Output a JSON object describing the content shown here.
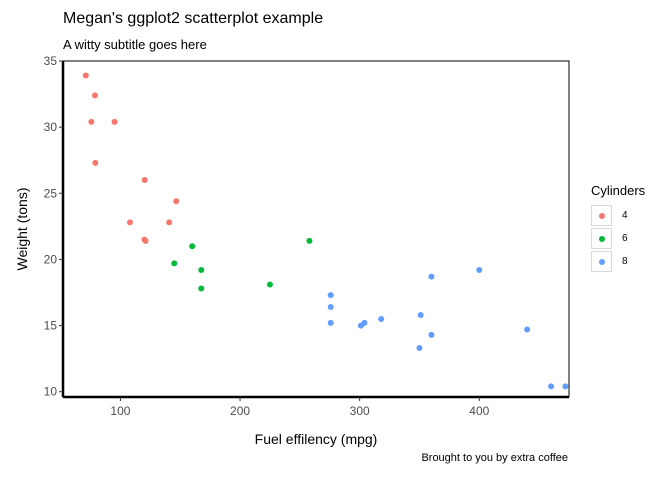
{
  "chart_data": {
    "type": "scatter",
    "title": "Megan's ggplot2 scatterplot example",
    "subtitle": "A witty subtitle goes here",
    "caption": "Brought to you by extra coffee",
    "xlabel": "Fuel effilency (mpg)",
    "ylabel": "Weight (tons)",
    "xlim": [
      52,
      475
    ],
    "ylim": [
      9.6,
      35
    ],
    "x_ticks": [
      100,
      200,
      300,
      400
    ],
    "y_ticks": [
      10,
      15,
      20,
      25,
      30,
      35
    ],
    "grid": false,
    "legend": {
      "title": "Cylinders",
      "position": "right"
    },
    "series": [
      {
        "name": "4",
        "color": "#F8766D",
        "points": [
          [
            71.1,
            33.9
          ],
          [
            78.7,
            32.4
          ],
          [
            75.7,
            30.4
          ],
          [
            95.1,
            30.4
          ],
          [
            79.0,
            27.3
          ],
          [
            120.3,
            26.0
          ],
          [
            146.7,
            24.4
          ],
          [
            108.0,
            22.8
          ],
          [
            140.8,
            22.8
          ],
          [
            120.1,
            21.5
          ],
          [
            121.0,
            21.4
          ]
        ]
      },
      {
        "name": "6",
        "color": "#00BA38",
        "points": [
          [
            160.0,
            21.0
          ],
          [
            258.0,
            21.4
          ],
          [
            145.0,
            19.7
          ],
          [
            167.6,
            19.2
          ],
          [
            225.0,
            18.1
          ],
          [
            167.6,
            17.8
          ]
        ]
      },
      {
        "name": "8",
        "color": "#619CFF",
        "points": [
          [
            360.0,
            18.7
          ],
          [
            400.0,
            19.2
          ],
          [
            275.8,
            17.3
          ],
          [
            275.8,
            16.4
          ],
          [
            275.8,
            15.2
          ],
          [
            304.0,
            15.2
          ],
          [
            318.0,
            15.5
          ],
          [
            301.0,
            15.0
          ],
          [
            351.0,
            15.8
          ],
          [
            360.0,
            14.3
          ],
          [
            440.0,
            14.7
          ],
          [
            350.0,
            13.3
          ],
          [
            460.0,
            10.4
          ],
          [
            472.0,
            10.4
          ]
        ]
      }
    ]
  }
}
